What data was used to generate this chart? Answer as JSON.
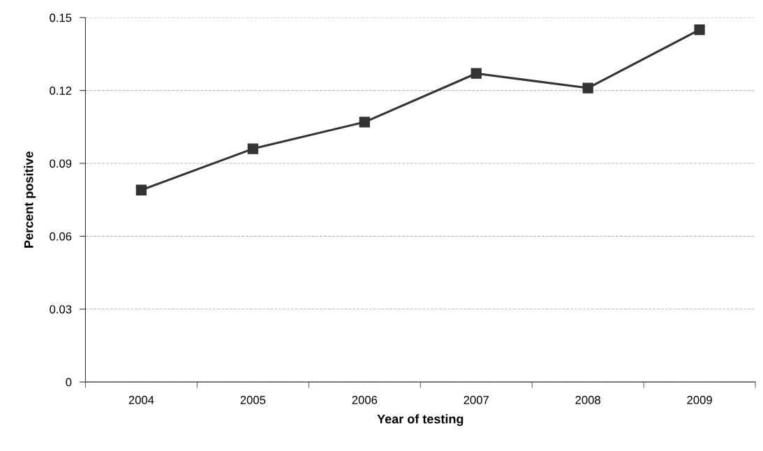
{
  "chart_data": {
    "type": "line",
    "xlabel": "Year of testing",
    "ylabel": "Percent positive",
    "categories": [
      "2004",
      "2005",
      "2006",
      "2007",
      "2008",
      "2009"
    ],
    "series": [
      {
        "color": "#333333",
        "values": [
          0.079,
          0.096,
          0.107,
          0.127,
          0.121,
          0.145
        ]
      }
    ],
    "ylim": [
      0,
      0.15
    ],
    "yticks": [
      0,
      0.03,
      0.06,
      0.09,
      0.12,
      0.15
    ],
    "grid": "y",
    "marker": "square",
    "line_style": "solid",
    "legend": false
  }
}
